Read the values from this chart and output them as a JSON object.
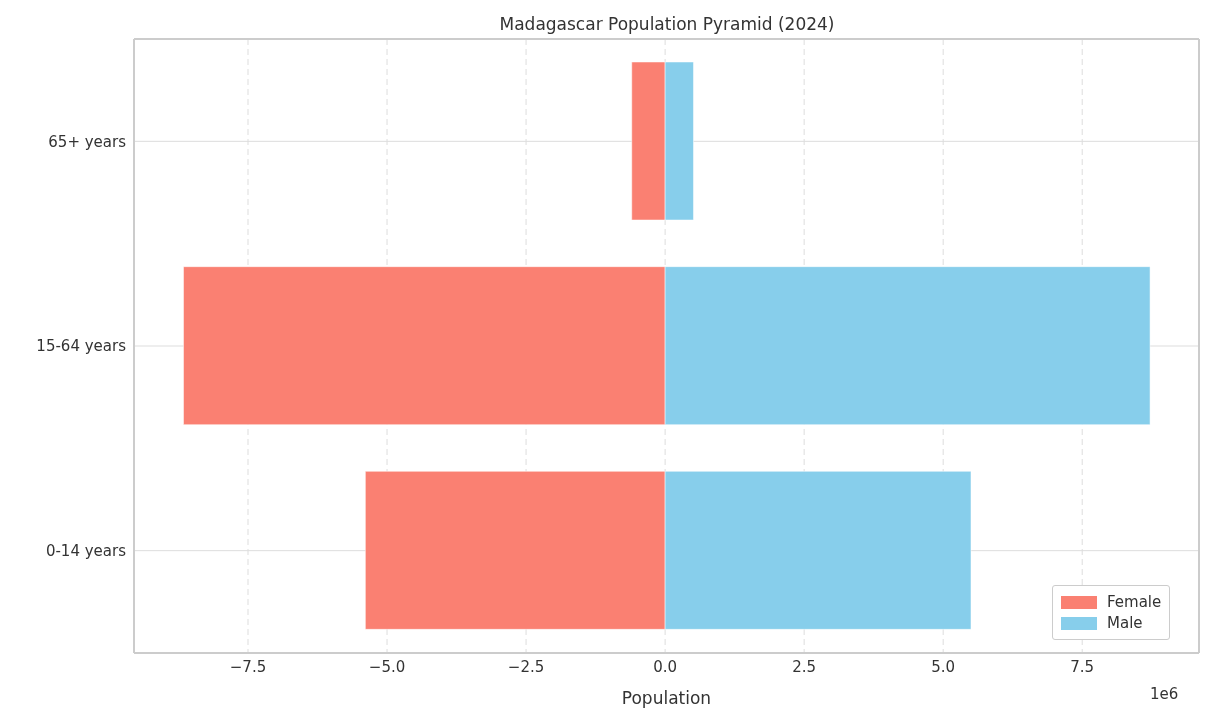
{
  "chart_data": {
    "type": "bar",
    "orientation": "horizontal",
    "stacked": true,
    "title": "Madagascar Population Pyramid (2024)",
    "xlabel": "Population",
    "categories": [
      "65+ years",
      "15-64 years",
      "0-14 years"
    ],
    "series": [
      {
        "name": "Female",
        "color": "#fa8072",
        "values": [
          -0.6,
          -8.66,
          -5.39
        ]
      },
      {
        "name": "Male",
        "color": "#87ceeb",
        "values": [
          0.51,
          8.72,
          5.5
        ]
      }
    ],
    "xlim": [
      -9.55,
      9.6
    ],
    "xticks": [
      {
        "value": -7.5,
        "label": "−7.5"
      },
      {
        "value": -5,
        "label": "−5.0"
      },
      {
        "value": -2.5,
        "label": "−2.5"
      },
      {
        "value": 0,
        "label": "0.0"
      },
      {
        "value": 2.5,
        "label": "2.5"
      },
      {
        "value": 5,
        "label": "5.0"
      },
      {
        "value": 7.5,
        "label": "7.5"
      }
    ],
    "annotations": [
      "1e6"
    ],
    "grid": true,
    "legend": "bottom right"
  }
}
